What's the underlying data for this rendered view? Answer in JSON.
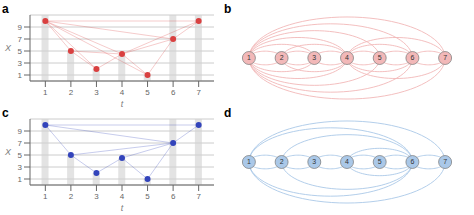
{
  "chart_data": [
    {
      "type": "scatter",
      "title": "a",
      "x_label": "t",
      "y_label": "X",
      "x": [
        1,
        2,
        3,
        4,
        5,
        6,
        7
      ],
      "series": [
        {
          "type": "bar",
          "color": "#d0d0d0",
          "values": [
            11,
            5,
            2,
            4.5,
            1,
            11,
            11
          ]
        },
        {
          "type": "scatter",
          "color": "#d94040",
          "values": [
            10,
            5,
            2,
            4.5,
            1,
            7,
            10
          ]
        }
      ],
      "edges": [
        [
          1,
          2
        ],
        [
          1,
          3
        ],
        [
          1,
          4
        ],
        [
          1,
          5
        ],
        [
          1,
          6
        ],
        [
          1,
          7
        ],
        [
          2,
          3
        ],
        [
          2,
          4
        ],
        [
          3,
          4
        ],
        [
          4,
          5
        ],
        [
          4,
          6
        ],
        [
          4,
          7
        ],
        [
          5,
          6
        ],
        [
          6,
          7
        ]
      ],
      "xlim": [
        0.4,
        7.6
      ],
      "xticks": [
        1,
        2,
        3,
        4,
        5,
        6,
        7
      ],
      "ylim": [
        0,
        11
      ],
      "yticks": [
        1,
        3,
        5,
        7,
        9
      ],
      "grid": true
    },
    {
      "type": "graph",
      "title": "b",
      "nodes": [
        1,
        2,
        3,
        4,
        5,
        6,
        7
      ],
      "color": "#f2b8b8",
      "edges": [
        [
          1,
          2
        ],
        [
          1,
          3
        ],
        [
          1,
          4
        ],
        [
          1,
          5
        ],
        [
          1,
          6
        ],
        [
          1,
          7
        ],
        [
          2,
          3
        ],
        [
          2,
          4
        ],
        [
          3,
          4
        ],
        [
          4,
          5
        ],
        [
          4,
          6
        ],
        [
          4,
          7
        ],
        [
          5,
          6
        ],
        [
          6,
          7
        ]
      ],
      "xlim": [
        0.3,
        7.7
      ],
      "ylim": [
        -2.2,
        2.2
      ],
      "tick_labels": false
    },
    {
      "type": "scatter",
      "title": "c",
      "x_label": "t",
      "y_label": "X",
      "x": [
        1,
        2,
        3,
        4,
        5,
        6,
        7
      ],
      "series": [
        {
          "type": "bar",
          "color": "#d0d0d0",
          "values": [
            11,
            5,
            2,
            4.5,
            1,
            11,
            11
          ]
        },
        {
          "type": "scatter",
          "color": "#3344bb",
          "values": [
            10,
            5,
            2,
            4.5,
            1,
            7,
            10
          ]
        }
      ],
      "edges": [
        [
          1,
          2
        ],
        [
          1,
          6
        ],
        [
          1,
          7
        ],
        [
          2,
          3
        ],
        [
          2,
          6
        ],
        [
          3,
          4
        ],
        [
          4,
          5
        ],
        [
          4,
          6
        ],
        [
          5,
          6
        ],
        [
          6,
          7
        ]
      ],
      "xlim": [
        0.4,
        7.6
      ],
      "xticks": [
        1,
        2,
        3,
        4,
        5,
        6,
        7
      ],
      "ylim": [
        0,
        11
      ],
      "yticks": [
        1,
        3,
        5,
        7,
        9
      ],
      "grid": true
    },
    {
      "type": "graph",
      "title": "d",
      "nodes": [
        1,
        2,
        3,
        4,
        5,
        6,
        7
      ],
      "color": "#aac8e8",
      "edges": [
        [
          1,
          2
        ],
        [
          1,
          6
        ],
        [
          1,
          7
        ],
        [
          2,
          3
        ],
        [
          2,
          6
        ],
        [
          3,
          4
        ],
        [
          4,
          5
        ],
        [
          4,
          6
        ],
        [
          5,
          6
        ],
        [
          6,
          7
        ]
      ],
      "xlim": [
        0.3,
        7.7
      ],
      "ylim": [
        -2.2,
        2.2
      ],
      "tick_labels": false
    }
  ]
}
